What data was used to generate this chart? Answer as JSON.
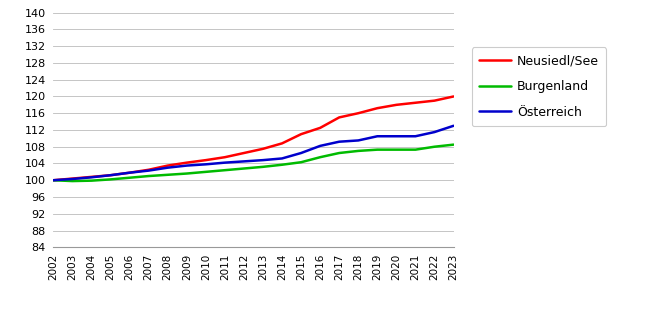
{
  "years": [
    2002,
    2003,
    2004,
    2005,
    2006,
    2007,
    2008,
    2009,
    2010,
    2011,
    2012,
    2013,
    2014,
    2015,
    2016,
    2017,
    2018,
    2019,
    2020,
    2021,
    2022,
    2023
  ],
  "neusiedl": [
    100.0,
    100.4,
    100.8,
    101.2,
    101.8,
    102.5,
    103.5,
    104.2,
    104.8,
    105.5,
    106.5,
    107.5,
    108.8,
    111.0,
    112.5,
    115.0,
    116.0,
    117.2,
    118.0,
    118.5,
    119.0,
    120.0
  ],
  "burgenland": [
    100.0,
    99.8,
    99.9,
    100.2,
    100.6,
    101.0,
    101.3,
    101.6,
    102.0,
    102.4,
    102.8,
    103.2,
    103.7,
    104.3,
    105.5,
    106.5,
    107.0,
    107.3,
    107.3,
    107.3,
    108.0,
    108.5
  ],
  "oesterreich": [
    100.0,
    100.3,
    100.7,
    101.2,
    101.8,
    102.3,
    103.0,
    103.5,
    103.8,
    104.2,
    104.5,
    104.8,
    105.2,
    106.5,
    108.2,
    109.2,
    109.5,
    110.5,
    110.5,
    110.5,
    111.5,
    113.0
  ],
  "neusiedl_color": "#FF0000",
  "burgenland_color": "#00BB00",
  "oesterreich_color": "#0000CC",
  "legend_labels": [
    "Neusiedl/See",
    "Burgenland",
    "Österreich"
  ],
  "ylabel_min": 84,
  "ylabel_max": 140,
  "ytick_step": 4,
  "line_width": 1.8,
  "bg_color": "#FFFFFF",
  "grid_color": "#BBBBBB"
}
